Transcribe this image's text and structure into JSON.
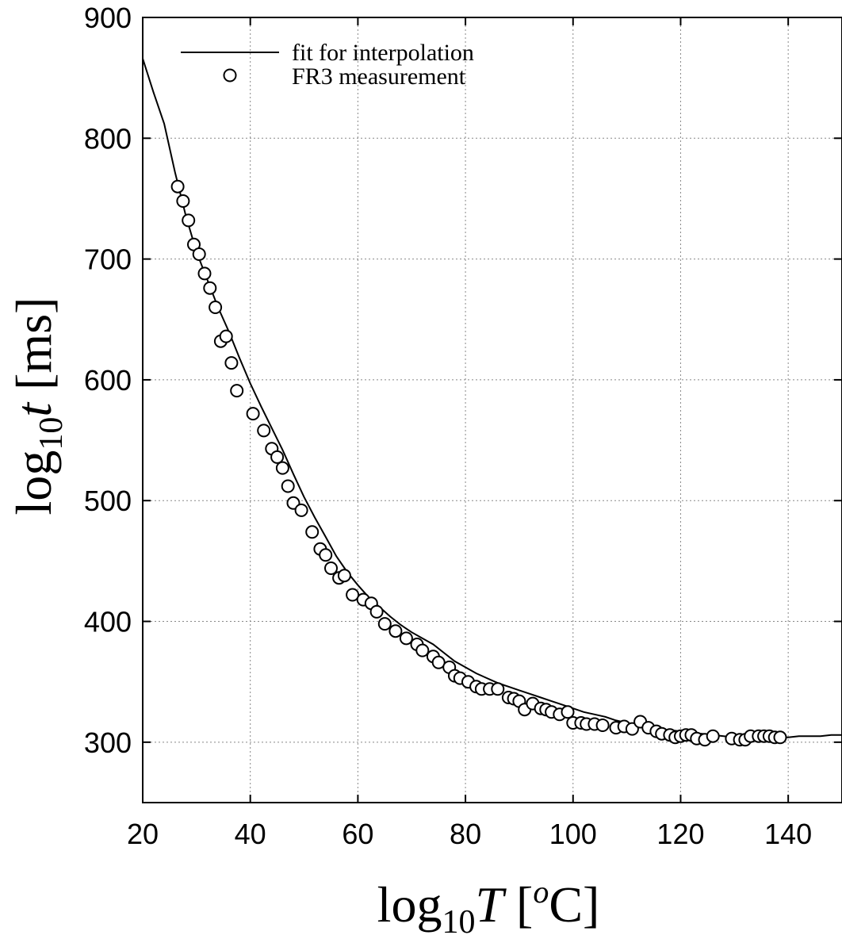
{
  "chart_data": {
    "type": "scatter",
    "title": "",
    "xlabel": {
      "main": "log",
      "sub": "10",
      "var": "T",
      "unit_open": " [",
      "unit_sup": "o",
      "unit_rest": "C]"
    },
    "ylabel": {
      "main": "log",
      "sub": "10",
      "var": "t",
      "unit": " [ms]"
    },
    "xlim": [
      20,
      150
    ],
    "ylim": [
      250,
      900
    ],
    "xticks": [
      20,
      40,
      60,
      80,
      100,
      120,
      140
    ],
    "yticks": [
      300,
      400,
      500,
      600,
      700,
      800,
      900
    ],
    "grid": true,
    "legend_position": "top-left",
    "series": [
      {
        "name": "fit for interpolation",
        "style": "line",
        "color": "#000000",
        "x": [
          20,
          22,
          24,
          26,
          28,
          30,
          32,
          34,
          36,
          38,
          40,
          42,
          44,
          46,
          48,
          50,
          52,
          54,
          56,
          58,
          60,
          62,
          64,
          66,
          68,
          70,
          72,
          74,
          76,
          78,
          80,
          82,
          84,
          86,
          88,
          90,
          92,
          94,
          96,
          98,
          100,
          102,
          104,
          106,
          108,
          110,
          112,
          114,
          116,
          118,
          120,
          122,
          124,
          126,
          128,
          130,
          132,
          134,
          136,
          138,
          140,
          142,
          144,
          146,
          148,
          150
        ],
        "y": [
          866,
          838,
          812,
          772,
          736,
          706,
          683,
          660,
          640,
          618,
          597,
          578,
          560,
          542,
          522,
          503,
          486,
          470,
          454,
          441,
          430,
          420,
          412,
          404,
          397,
          391,
          386,
          381,
          374,
          367,
          362,
          357,
          353,
          349,
          346,
          343,
          340,
          337,
          334,
          331,
          328,
          325,
          323,
          321,
          318,
          316,
          314,
          313,
          311,
          310,
          309,
          308,
          307,
          306,
          305,
          304,
          304,
          304,
          304,
          304,
          304,
          305,
          305,
          305,
          306,
          306
        ]
      },
      {
        "name": "FR3 measurement",
        "style": "markers",
        "marker": "open-circle",
        "color": "#000000",
        "x": [
          26.5,
          27.5,
          28.5,
          29.5,
          30.5,
          31.5,
          32.5,
          33.5,
          34.5,
          35.5,
          36.5,
          37.5,
          40.5,
          42.5,
          44,
          45,
          46,
          47,
          48,
          49.5,
          51.5,
          53,
          54,
          55,
          56.5,
          57.5,
          59,
          61,
          62.5,
          63.5,
          65,
          67,
          69,
          71,
          72,
          74,
          75,
          77,
          78,
          79,
          80.5,
          82,
          83,
          84.5,
          86,
          88,
          89,
          90,
          91,
          92.5,
          94,
          95,
          96,
          97.5,
          99,
          100,
          101.5,
          102.5,
          104,
          105.5,
          108,
          109.5,
          111,
          112.5,
          114,
          115.5,
          116.5,
          118,
          119,
          120,
          121,
          122,
          123,
          124.5,
          126,
          129.5,
          131,
          132,
          133,
          134.5,
          135.5,
          136.5,
          137.5,
          138.5
        ],
        "y": [
          760,
          748,
          732,
          712,
          704,
          688,
          676,
          660,
          632,
          636,
          614,
          591,
          572,
          558,
          543,
          536,
          527,
          512,
          498,
          492,
          474,
          460,
          455,
          444,
          436,
          438,
          422,
          418,
          415,
          408,
          398,
          392,
          386,
          381,
          376,
          371,
          366,
          362,
          355,
          353,
          350,
          346,
          344,
          344,
          344,
          337,
          336,
          334,
          327,
          332,
          328,
          327,
          325,
          323,
          325,
          316,
          316,
          315,
          315,
          314,
          312,
          313,
          311,
          317,
          312,
          309,
          307,
          306,
          304,
          305,
          306,
          306,
          303,
          302,
          305,
          303,
          302,
          302,
          305,
          305,
          305,
          305,
          304,
          304
        ]
      }
    ]
  }
}
